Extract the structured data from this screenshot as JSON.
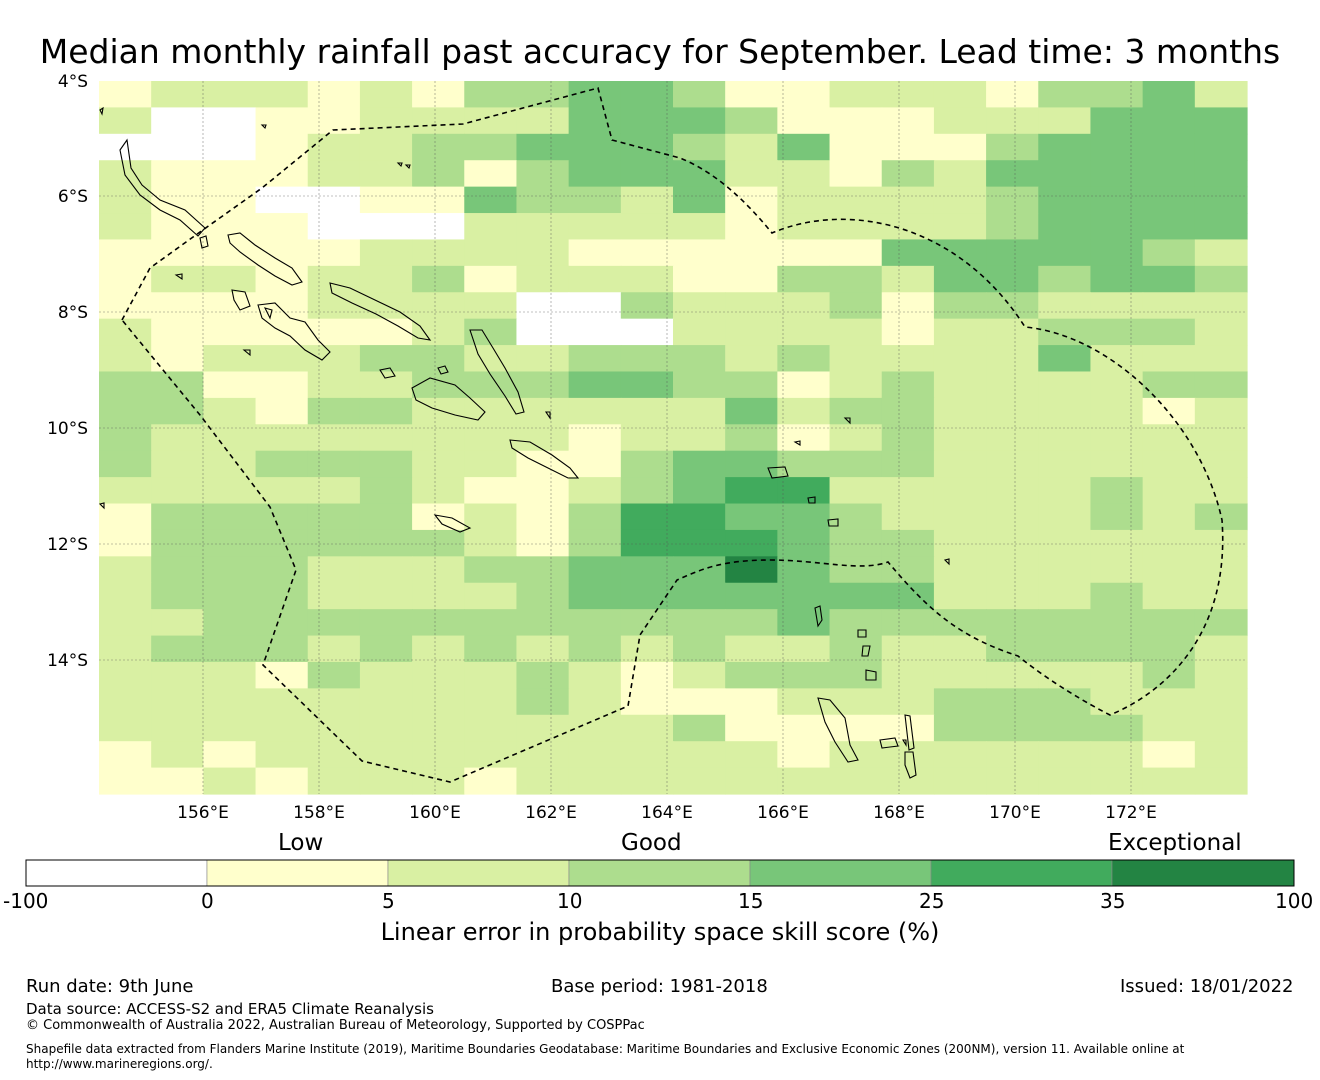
{
  "title": "Median monthly rainfall past accuracy for September. Lead time: 3 months",
  "map": {
    "lat_labels": [
      "4°S",
      "6°S",
      "8°S",
      "10°S",
      "12°S",
      "14°S"
    ],
    "lon_labels": [
      "156°E",
      "158°E",
      "160°E",
      "162°E",
      "164°E",
      "166°E",
      "168°E",
      "170°E",
      "172°E"
    ],
    "lon_range": [
      154.2,
      174.0
    ],
    "lat_range": [
      -4.0,
      -16.3
    ],
    "skill_grid_rows_north_to_south": [
      "1222121334431122213342",
      "2001122224443111222444",
      "0001223344432411134444",
      "2111223134442213244444",
      "2110011433241222234444",
      "2111000222221222234444",
      "1111122221111114444432",
      "1221223122211332443443",
      "1111222200322231332222",
      "2111112300022221223332",
      "2122233223332322224222",
      "3311223334433123222233",
      "3321332222224233222212",
      "3222222221223123222222",
      "3223332211344333222222",
      "2222232112345522222322",
      "1333331213554432222323",
      "1333333213555433222222",
      "2333222334446433222222",
      "2333222234444444222322",
      "2233333333333433333333",
      "2333232323232232233332",
      "2221322232123332222232",
      "2222222232111222333222",
      "2222222222231111333322",
      "1212222222222122222212",
      "1121222122222222222222"
    ],
    "palette": [
      "#ffffff",
      "#ffffcc",
      "#d9f0a3",
      "#addd8e",
      "#78c679",
      "#41ab5d",
      "#238443"
    ]
  },
  "colorbar": {
    "categories": [
      "Low",
      "Good",
      "Exceptional"
    ],
    "ticks": [
      "-100",
      "0",
      "5",
      "10",
      "15",
      "25",
      "35",
      "100"
    ],
    "colors": [
      "#ffffff",
      "#ffffcc",
      "#d9f0a3",
      "#addd8e",
      "#78c679",
      "#41ab5d",
      "#238443"
    ],
    "label": "Linear error in probability space skill score (%)"
  },
  "footer": {
    "run_date": "Run date: 9th June",
    "base_period": "Base period: 1981-2018",
    "issued": "Issued: 18/01/2022",
    "data_source": "Data source: ACCESS-S2 and ERA5 Climate Reanalysis",
    "copyright": "© Commonwealth of Australia 2022, Australian Bureau of Meteorology, Supported by COSPPac",
    "shapefile_line1": "Shapefile data extracted from Flanders Marine Institute (2019), Maritime Boundaries Geodatabase: Maritime Boundaries and Exclusive Economic Zones (200NM), version 11. Available online at",
    "shapefile_line2": "http://www.marineregions.org/."
  }
}
